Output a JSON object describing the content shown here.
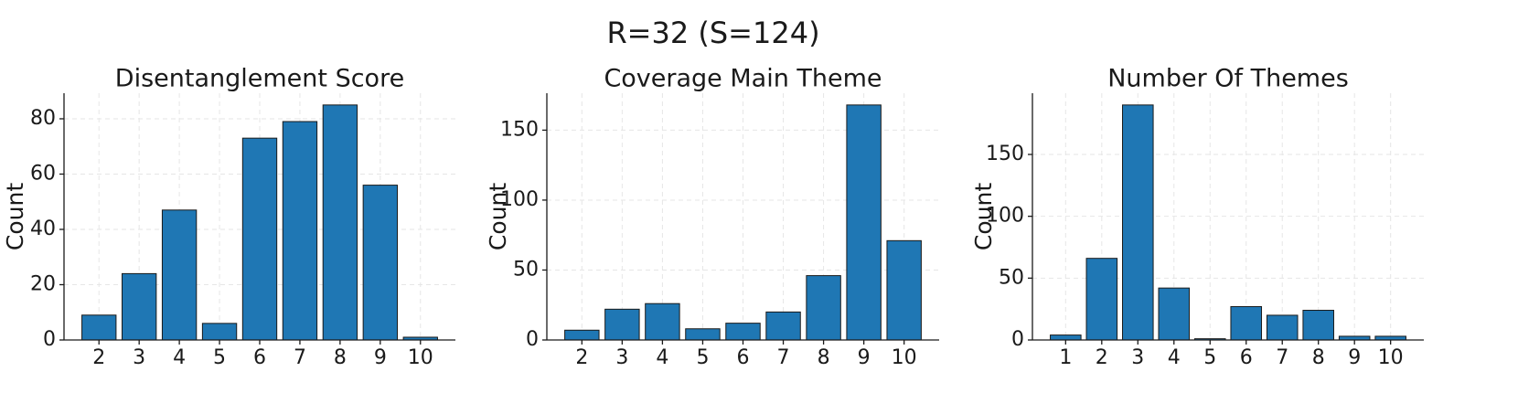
{
  "title": "R=32 (S=124)",
  "chart_data": [
    {
      "type": "bar",
      "title": "Disentanglement Score",
      "ylabel": "Count",
      "x": [
        2,
        3,
        4,
        5,
        6,
        7,
        8,
        9,
        10
      ],
      "values": [
        9,
        24,
        47,
        6,
        73,
        79,
        85,
        56,
        1
      ],
      "color": "#1f77b4",
      "xlim": [
        1.13,
        10.87
      ],
      "ylim": [
        0,
        89.25
      ],
      "xticks": [
        2,
        3,
        4,
        5,
        6,
        7,
        8,
        9,
        10
      ],
      "yticks": [
        0,
        20,
        40,
        60,
        80
      ],
      "grid": true
    },
    {
      "type": "bar",
      "title": "Coverage Main Theme",
      "ylabel": "Count",
      "x": [
        2,
        3,
        4,
        5,
        6,
        7,
        8,
        9,
        10
      ],
      "values": [
        7,
        22,
        26,
        8,
        12,
        20,
        46,
        168,
        71
      ],
      "color": "#1f77b4",
      "xlim": [
        1.13,
        10.87
      ],
      "ylim": [
        0,
        176.4
      ],
      "xticks": [
        2,
        3,
        4,
        5,
        6,
        7,
        8,
        9,
        10
      ],
      "yticks": [
        0,
        50,
        100,
        150
      ],
      "grid": true
    },
    {
      "type": "bar",
      "title": "Number Of Themes",
      "ylabel": "Count",
      "x": [
        1,
        2,
        3,
        4,
        5,
        6,
        7,
        8,
        9,
        10
      ],
      "values": [
        4,
        66,
        190,
        42,
        1,
        27,
        20,
        24,
        3,
        3
      ],
      "color": "#1f77b4",
      "xlim": [
        0.08,
        10.92
      ],
      "ylim": [
        0,
        199.5
      ],
      "xticks": [
        1,
        2,
        3,
        4,
        5,
        6,
        7,
        8,
        9,
        10
      ],
      "yticks": [
        0,
        50,
        100,
        150
      ],
      "grid": true
    }
  ]
}
